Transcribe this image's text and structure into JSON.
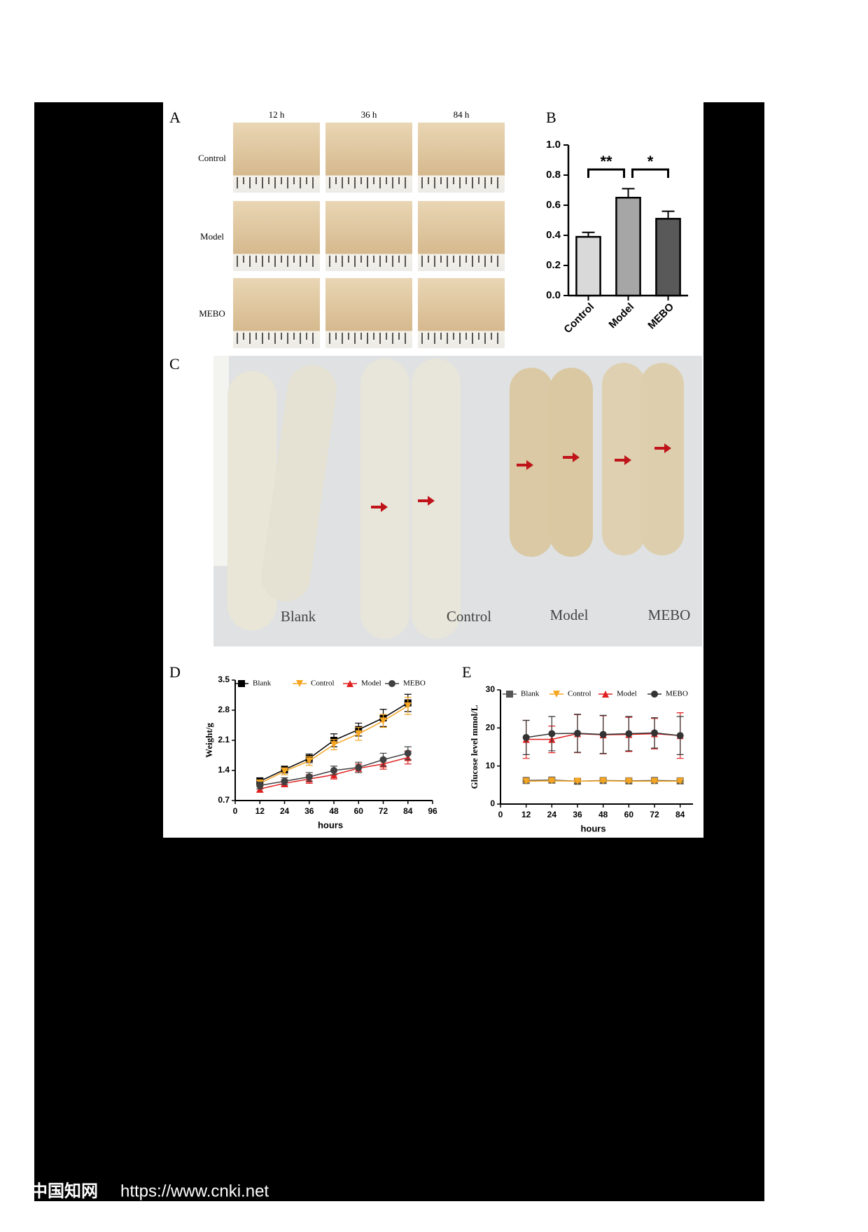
{
  "panels": {
    "a": "A",
    "b": "B",
    "c": "C",
    "d": "D",
    "e": "E"
  },
  "panel_a": {
    "columns": [
      "12 h",
      "36 h",
      "84 h"
    ],
    "rows": [
      "Control",
      "Model",
      "MEBO"
    ]
  },
  "panel_c": {
    "labels": [
      "Blank",
      "Control",
      "Model",
      "MEBO"
    ]
  },
  "footer": {
    "site": "中国知网",
    "url": "https://www.cnki.net"
  },
  "chart_data": [
    {
      "type": "bar",
      "categories": [
        "Control",
        "Model",
        "MEBO"
      ],
      "values": [
        0.39,
        0.65,
        0.51
      ],
      "errors": [
        0.03,
        0.06,
        0.05
      ],
      "colors": [
        "#d9d9d9",
        "#a6a6a6",
        "#595959"
      ],
      "annotations": [
        "**",
        "*"
      ],
      "ylim": [
        0,
        1.0
      ],
      "yticks": [
        {
          "value": 0,
          "label": "0.0"
        },
        {
          "value": 0.2,
          "label": "0.2"
        },
        {
          "value": 0.4,
          "label": "0.4"
        },
        {
          "value": 0.6,
          "label": "0.6"
        },
        {
          "value": 0.8,
          "label": "0.8"
        },
        {
          "value": 1.0,
          "label": "1.0"
        }
      ]
    },
    {
      "type": "line",
      "y_label": "Weight/g",
      "x_label": "hours",
      "x": [
        12,
        24,
        36,
        48,
        60,
        72,
        84
      ],
      "xlim": [
        0,
        96
      ],
      "xticks": [
        0,
        12,
        24,
        36,
        48,
        60,
        72,
        84,
        96
      ],
      "ylim": [
        0.7,
        3.5
      ],
      "yticks": [
        0.7,
        1.4,
        2.1,
        2.8,
        3.5
      ],
      "series": [
        {
          "name": "Blank",
          "color": "#000000",
          "marker": "square",
          "values": [
            1.15,
            1.42,
            1.68,
            2.1,
            2.35,
            2.62,
            2.97
          ],
          "errors": [
            0.08,
            0.08,
            0.1,
            0.15,
            0.15,
            0.2,
            0.2
          ]
        },
        {
          "name": "Control",
          "color": "#f5a623",
          "marker": "triangle-down",
          "values": [
            1.1,
            1.38,
            1.62,
            2.0,
            2.25,
            2.55,
            2.9
          ],
          "errors": [
            0.08,
            0.08,
            0.1,
            0.12,
            0.15,
            0.15,
            0.2
          ]
        },
        {
          "name": "Model",
          "color": "#e02020",
          "marker": "triangle-up",
          "values": [
            0.97,
            1.1,
            1.2,
            1.3,
            1.45,
            1.55,
            1.7
          ],
          "errors": [
            0.08,
            0.08,
            0.1,
            0.1,
            0.1,
            0.12,
            0.15
          ]
        },
        {
          "name": "MEBO",
          "color": "#404040",
          "marker": "circle",
          "values": [
            1.05,
            1.15,
            1.25,
            1.4,
            1.47,
            1.65,
            1.8
          ],
          "errors": [
            0.08,
            0.08,
            0.1,
            0.1,
            0.12,
            0.15,
            0.15
          ]
        }
      ]
    },
    {
      "type": "line",
      "y_label": "Glucose level mmol/L",
      "x_label": "hours",
      "x": [
        12,
        24,
        36,
        48,
        60,
        72,
        84
      ],
      "xlim": [
        0,
        90
      ],
      "xticks": [
        0,
        12,
        24,
        36,
        48,
        60,
        72,
        84
      ],
      "ylim": [
        0,
        30
      ],
      "yticks": [
        0,
        10,
        20,
        30
      ],
      "series": [
        {
          "name": "Blank",
          "color": "#555555",
          "marker": "square",
          "values": [
            6.2,
            6.3,
            6.0,
            6.2,
            6.1,
            6.2,
            6.1
          ],
          "errors": [
            0.3,
            0.3,
            0.3,
            0.3,
            0.3,
            0.3,
            0.3
          ]
        },
        {
          "name": "Control",
          "color": "#f5a623",
          "marker": "triangle-down",
          "values": [
            6.0,
            6.1,
            6.0,
            6.1,
            6.0,
            6.0,
            6.0
          ],
          "errors": [
            0.3,
            0.3,
            0.3,
            0.3,
            0.3,
            0.3,
            0.3
          ]
        },
        {
          "name": "Model",
          "color": "#e02020",
          "marker": "triangle-up",
          "values": [
            17,
            17,
            18.5,
            18.2,
            18.3,
            18.5,
            18
          ],
          "errors": [
            5,
            3.5,
            5,
            5,
            4.5,
            4,
            6
          ]
        },
        {
          "name": "MEBO",
          "color": "#333333",
          "marker": "circle",
          "values": [
            17.5,
            18.5,
            18.6,
            18.3,
            18.5,
            18.7,
            18
          ],
          "errors": [
            4.5,
            4.5,
            5,
            5,
            4.5,
            4,
            5
          ]
        }
      ]
    }
  ]
}
